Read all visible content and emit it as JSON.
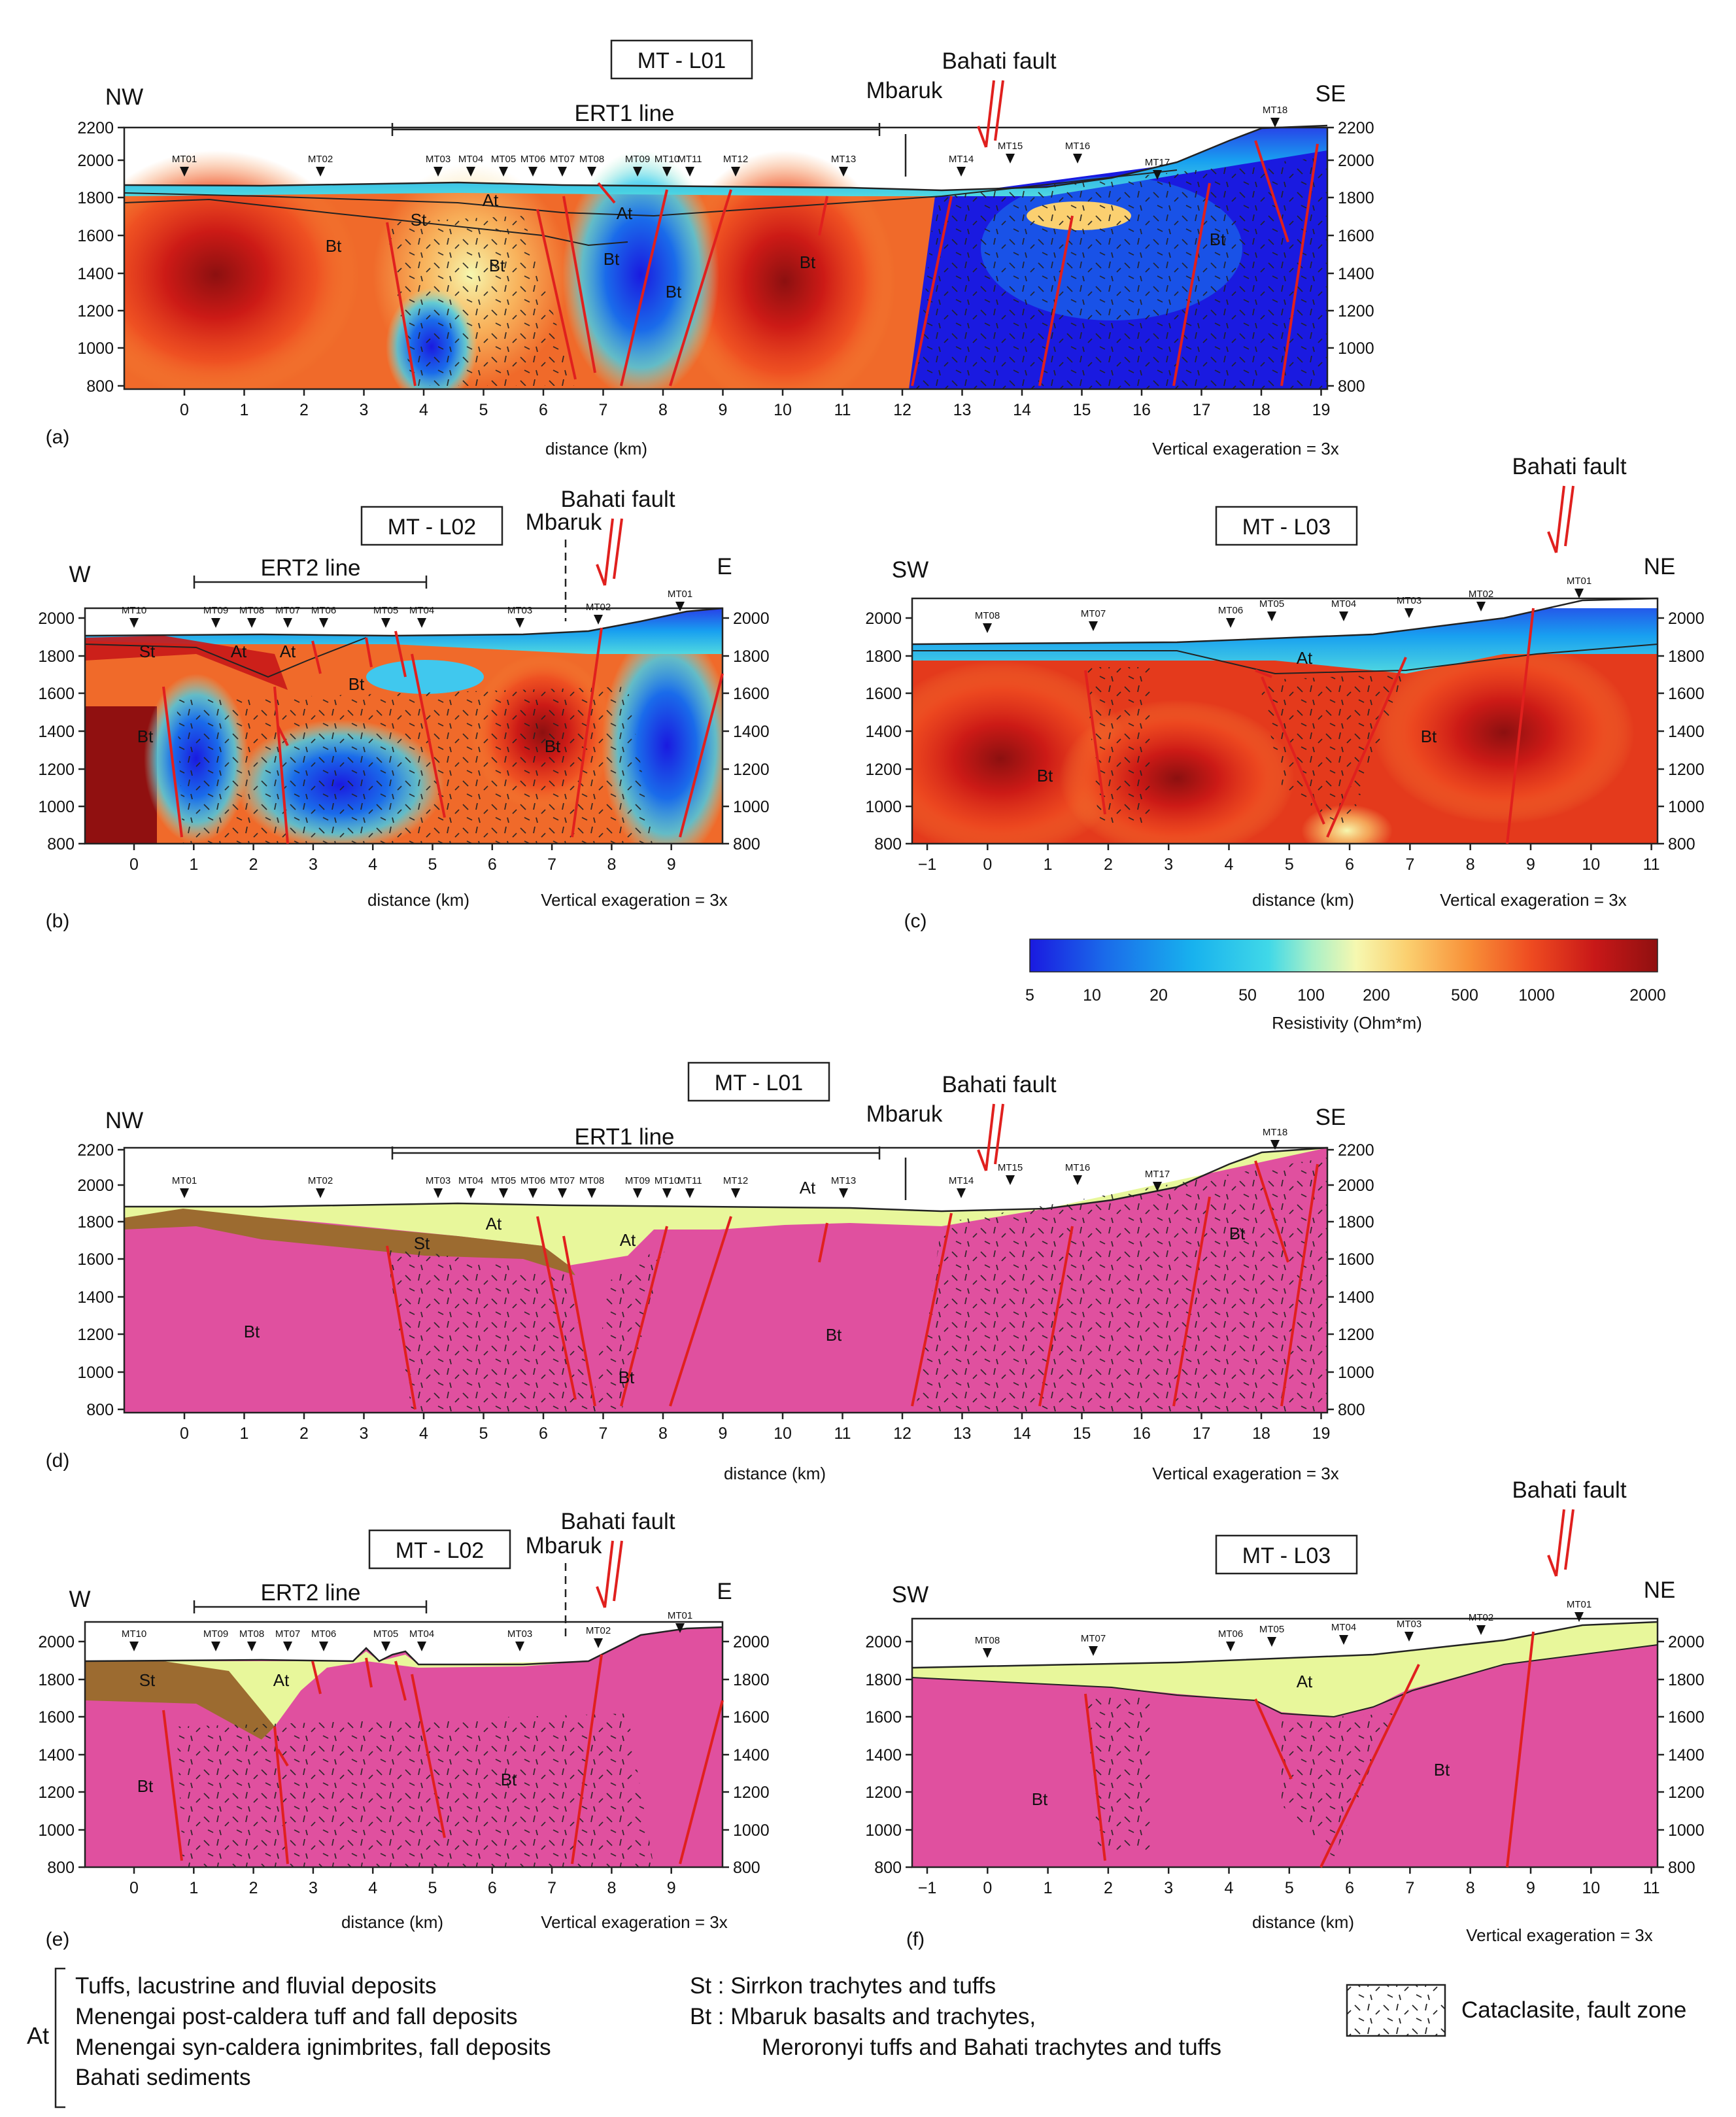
{
  "colors": {
    "bt_fill": "#e0509f",
    "at_fill": "#e8f79b",
    "st_fill": "#9c6b30",
    "fault": "#e0201e",
    "resistivity_ramp": [
      "#1a1ae0",
      "#1a6bea",
      "#18b2ee",
      "#40d8e8",
      "#a8f0c8",
      "#f6f8b0",
      "#fbd070",
      "#f89038",
      "#ee4a20",
      "#c81818",
      "#901010"
    ]
  },
  "axes": {
    "distance_label": "distance (km)",
    "vertical_exag": "Vertical exageration = 3x",
    "elev_ticks_l01": [
      "800",
      "1000",
      "1200",
      "1400",
      "1600",
      "1800",
      "2000",
      "2200"
    ],
    "elev_ticks_l02": [
      "800",
      "1000",
      "1200",
      "1400",
      "1600",
      "1800",
      "2000"
    ],
    "x_ticks_l01": [
      "0",
      "1",
      "2",
      "3",
      "4",
      "5",
      "6",
      "7",
      "8",
      "9",
      "10",
      "11",
      "12",
      "13",
      "14",
      "15",
      "16",
      "17",
      "18",
      "19"
    ],
    "x_ticks_l02": [
      "0",
      "1",
      "2",
      "3",
      "4",
      "5",
      "6",
      "7",
      "8",
      "9"
    ],
    "x_ticks_l03": [
      "−1",
      "0",
      "1",
      "2",
      "3",
      "4",
      "5",
      "6",
      "7",
      "8",
      "9",
      "10",
      "11"
    ]
  },
  "common": {
    "bahati_fault": "Bahati fault",
    "mbaruk": "Mbaruk",
    "unit_bt": "Bt",
    "unit_at": "At",
    "unit_st": "St"
  },
  "panels": {
    "a": {
      "label": "(a)",
      "title": "MT - L01",
      "left_dir": "NW",
      "right_dir": "SE",
      "ert": "ERT1 line",
      "stations": [
        "MT01",
        "MT02",
        "MT03",
        "MT04",
        "MT05",
        "MT06",
        "MT07",
        "MT08",
        "MT09",
        "MT10",
        "MT11",
        "MT12",
        "MT13",
        "MT14",
        "MT15",
        "MT16",
        "MT17",
        "MT18"
      ]
    },
    "b": {
      "label": "(b)",
      "title": "MT - L02",
      "left_dir": "W",
      "right_dir": "E",
      "ert": "ERT2 line",
      "stations": [
        "MT10",
        "MT09",
        "MT08",
        "MT07",
        "MT06",
        "MT05",
        "MT04",
        "MT03",
        "MT02",
        "MT01"
      ]
    },
    "c": {
      "label": "(c)",
      "title": "MT - L03",
      "left_dir": "SW",
      "right_dir": "NE",
      "stations": [
        "MT08",
        "MT07",
        "MT06",
        "MT05",
        "MT04",
        "MT03",
        "MT02",
        "MT01"
      ]
    },
    "d": {
      "label": "(d)",
      "title": "MT - L01",
      "left_dir": "NW",
      "right_dir": "SE",
      "ert": "ERT1 line",
      "stations": [
        "MT01",
        "MT02",
        "MT03",
        "MT04",
        "MT05",
        "MT06",
        "MT07",
        "MT08",
        "MT09",
        "MT10",
        "MT11",
        "MT12",
        "MT13",
        "MT14",
        "MT15",
        "MT16",
        "MT17",
        "MT18"
      ]
    },
    "e": {
      "label": "(e)",
      "title": "MT - L02",
      "left_dir": "W",
      "right_dir": "E",
      "ert": "ERT2 line",
      "stations": [
        "MT10",
        "MT09",
        "MT08",
        "MT07",
        "MT06",
        "MT05",
        "MT04",
        "MT03",
        "MT02",
        "MT01"
      ]
    },
    "f": {
      "label": "(f)",
      "title": "MT - L03",
      "left_dir": "SW",
      "right_dir": "NE",
      "stations": [
        "MT08",
        "MT07",
        "MT06",
        "MT05",
        "MT04",
        "MT03",
        "MT02",
        "MT01"
      ]
    }
  },
  "colorbar": {
    "ticks": [
      "5",
      "10",
      "20",
      "50",
      "100",
      "200",
      "500",
      "1000",
      "2000"
    ],
    "label": "Resistivity (Ohm*m)"
  },
  "legend": {
    "at_abbrev": "At",
    "at_lines": [
      "Tuffs, lacustrine and fluvial deposits",
      "Menengai post-caldera tuff and fall deposits",
      "Menengai syn-caldera ignimbrites, fall deposits",
      "Bahati sediments"
    ],
    "st_line": "St : Sirrkon trachytes and tuffs",
    "bt_line1": "Bt : Mbaruk basalts and trachytes,",
    "bt_line2": "Meroronyi tuffs and Bahati trachytes and tuffs",
    "cataclasite": "Cataclasite, fault zone"
  }
}
